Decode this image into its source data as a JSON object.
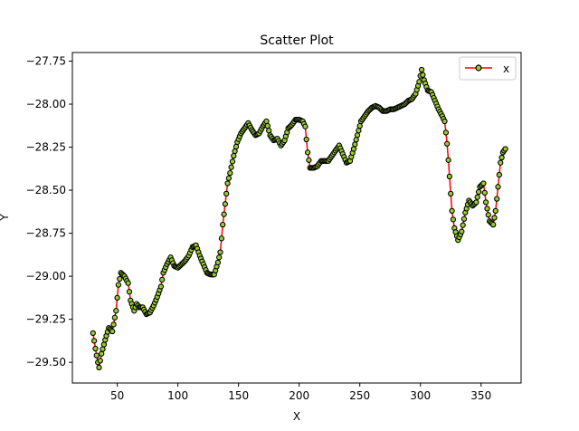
{
  "chart_data": {
    "type": "line",
    "title": "Scatter Plot",
    "xlabel": "X",
    "ylabel": "Y",
    "xlim": [
      13,
      383
    ],
    "ylim": [
      -29.62,
      -27.7
    ],
    "xticks": [
      50,
      100,
      150,
      200,
      250,
      300,
      350
    ],
    "xtick_labels": [
      "50",
      "100",
      "150",
      "200",
      "250",
      "300",
      "350"
    ],
    "yticks": [
      -29.5,
      -29.25,
      -29.0,
      -28.75,
      -28.5,
      -28.25,
      -28.0,
      -27.75
    ],
    "ytick_labels": [
      "−29.50",
      "−29.25",
      "−29.00",
      "−28.75",
      "−28.50",
      "−28.25",
      "−28.00",
      "−27.75"
    ],
    "grid": false,
    "legend": {
      "position": "top-right"
    },
    "series": [
      {
        "name": "x",
        "line_color": "#ff0000",
        "marker_face": "#9acd32",
        "marker_edge": "#000000",
        "anchors": [
          [
            30,
            -29.33
          ],
          [
            32,
            -29.42
          ],
          [
            34,
            -29.5
          ],
          [
            35,
            -29.53
          ],
          [
            37,
            -29.45
          ],
          [
            40,
            -29.37
          ],
          [
            43,
            -29.3
          ],
          [
            46,
            -29.32
          ],
          [
            49,
            -29.2
          ],
          [
            51,
            -29.05
          ],
          [
            53,
            -28.98
          ],
          [
            56,
            -29.0
          ],
          [
            59,
            -29.04
          ],
          [
            61,
            -29.14
          ],
          [
            64,
            -29.2
          ],
          [
            66,
            -29.16
          ],
          [
            68,
            -29.18
          ],
          [
            71,
            -29.18
          ],
          [
            74,
            -29.22
          ],
          [
            77,
            -29.21
          ],
          [
            80,
            -29.17
          ],
          [
            83,
            -29.12
          ],
          [
            86,
            -29.06
          ],
          [
            88,
            -28.98
          ],
          [
            91,
            -28.93
          ],
          [
            94,
            -28.89
          ],
          [
            97,
            -28.94
          ],
          [
            100,
            -28.95
          ],
          [
            103,
            -28.93
          ],
          [
            106,
            -28.91
          ],
          [
            109,
            -28.88
          ],
          [
            112,
            -28.83
          ],
          [
            115,
            -28.82
          ],
          [
            118,
            -28.88
          ],
          [
            121,
            -28.93
          ],
          [
            124,
            -28.98
          ],
          [
            127,
            -28.99
          ],
          [
            130,
            -28.99
          ],
          [
            133,
            -28.92
          ],
          [
            135,
            -28.86
          ],
          [
            137,
            -28.7
          ],
          [
            139,
            -28.58
          ],
          [
            141,
            -28.46
          ],
          [
            143,
            -28.4
          ],
          [
            146,
            -28.3
          ],
          [
            149,
            -28.22
          ],
          [
            152,
            -28.17
          ],
          [
            155,
            -28.14
          ],
          [
            158,
            -28.11
          ],
          [
            161,
            -28.15
          ],
          [
            164,
            -28.18
          ],
          [
            167,
            -28.17
          ],
          [
            170,
            -28.13
          ],
          [
            173,
            -28.1
          ],
          [
            176,
            -28.18
          ],
          [
            179,
            -28.21
          ],
          [
            182,
            -28.2
          ],
          [
            185,
            -28.24
          ],
          [
            188,
            -28.21
          ],
          [
            191,
            -28.14
          ],
          [
            194,
            -28.12
          ],
          [
            197,
            -28.09
          ],
          [
            200,
            -28.09
          ],
          [
            203,
            -28.1
          ],
          [
            205,
            -28.13
          ],
          [
            207,
            -28.28
          ],
          [
            209,
            -28.37
          ],
          [
            212,
            -28.37
          ],
          [
            215,
            -28.36
          ],
          [
            218,
            -28.33
          ],
          [
            221,
            -28.33
          ],
          [
            224,
            -28.33
          ],
          [
            227,
            -28.3
          ],
          [
            230,
            -28.27
          ],
          [
            233,
            -28.24
          ],
          [
            236,
            -28.29
          ],
          [
            239,
            -28.34
          ],
          [
            242,
            -28.33
          ],
          [
            245,
            -28.26
          ],
          [
            248,
            -28.18
          ],
          [
            251,
            -28.1
          ],
          [
            254,
            -28.07
          ],
          [
            257,
            -28.04
          ],
          [
            260,
            -28.02
          ],
          [
            263,
            -28.01
          ],
          [
            266,
            -28.02
          ],
          [
            269,
            -28.04
          ],
          [
            272,
            -28.04
          ],
          [
            275,
            -28.03
          ],
          [
            278,
            -28.03
          ],
          [
            281,
            -28.02
          ],
          [
            284,
            -28.01
          ],
          [
            287,
            -28.0
          ],
          [
            290,
            -27.98
          ],
          [
            293,
            -27.97
          ],
          [
            296,
            -27.94
          ],
          [
            299,
            -27.87
          ],
          [
            301,
            -27.8
          ],
          [
            303,
            -27.86
          ],
          [
            306,
            -27.92
          ],
          [
            309,
            -27.93
          ],
          [
            312,
            -27.98
          ],
          [
            315,
            -28.03
          ],
          [
            318,
            -28.07
          ],
          [
            320,
            -28.1
          ],
          [
            322,
            -28.23
          ],
          [
            324,
            -28.42
          ],
          [
            326,
            -28.62
          ],
          [
            328,
            -28.72
          ],
          [
            331,
            -28.79
          ],
          [
            334,
            -28.74
          ],
          [
            337,
            -28.63
          ],
          [
            340,
            -28.56
          ],
          [
            343,
            -28.59
          ],
          [
            346,
            -28.57
          ],
          [
            349,
            -28.48
          ],
          [
            352,
            -28.46
          ],
          [
            354,
            -28.57
          ],
          [
            357,
            -28.68
          ],
          [
            360,
            -28.7
          ],
          [
            362,
            -28.62
          ],
          [
            364,
            -28.48
          ],
          [
            366,
            -28.34
          ],
          [
            368,
            -28.28
          ],
          [
            370,
            -28.26
          ]
        ]
      }
    ]
  }
}
